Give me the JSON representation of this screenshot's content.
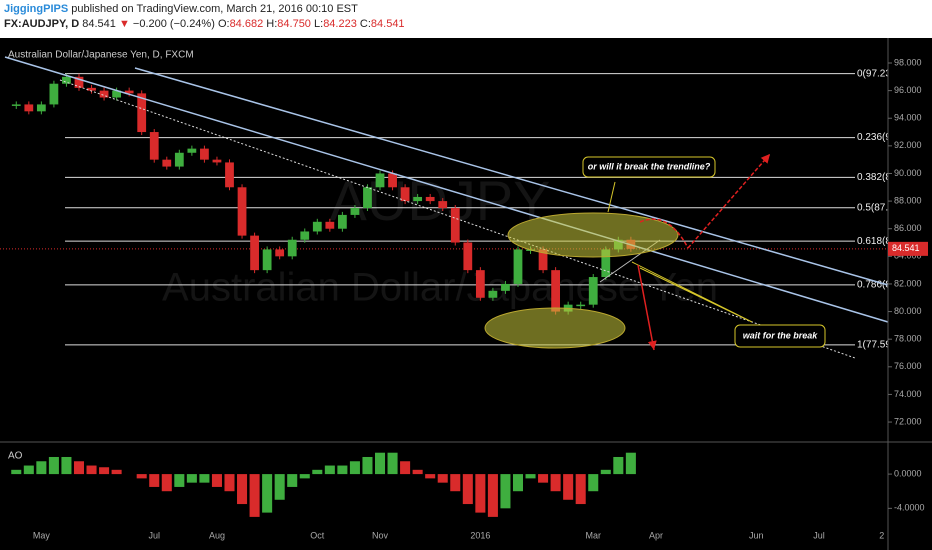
{
  "header": {
    "author": "JiggingPIPS",
    "published": "published on TradingView.com, March 21, 2016 00:10 EST",
    "symbol": "FX:AUDJPY, D",
    "last": "84.541",
    "arrow": "▼",
    "change": "−0.200 (−0.24%)",
    "ohlc": [
      [
        "O:",
        "84.682"
      ],
      [
        "H:",
        "84.750"
      ],
      [
        "L:",
        "84.223"
      ],
      [
        "C:",
        "84.541"
      ]
    ]
  },
  "chart_data": {
    "type": "candlestick",
    "title": "Australian Dollar/Japanese Yen, D, FXCM",
    "watermark": [
      "AUDJPY",
      "Australian Dollar/Japanese Yen"
    ],
    "categories": [
      null,
      null,
      "May",
      null,
      null,
      null,
      null,
      null,
      null,
      null,
      null,
      "Jul",
      null,
      null,
      null,
      null,
      "Aug",
      null,
      null,
      null,
      null,
      null,
      null,
      null,
      "Oct",
      null,
      null,
      null,
      null,
      "Nov",
      null,
      null,
      null,
      null,
      null,
      null,
      null,
      "2016",
      null,
      null,
      null,
      null,
      null,
      null,
      null,
      null,
      "Mar",
      null,
      null,
      null,
      null,
      "Apr",
      null,
      null,
      null,
      null,
      null,
      null,
      null,
      "Jun",
      null,
      null,
      null,
      null,
      "Jul",
      null,
      null,
      null,
      null,
      "2"
    ],
    "values": [
      95,
      94.5,
      95,
      96.5,
      97,
      96.2,
      96,
      95.5,
      96,
      95.8,
      93,
      91,
      90.5,
      91.5,
      91.8,
      91,
      90.8,
      89,
      85.5,
      83,
      84.5,
      84,
      85.2,
      85.8,
      86.5,
      86,
      87,
      87.5,
      89,
      90,
      89,
      88,
      88.3,
      88,
      87.5,
      85,
      83,
      81,
      81.5,
      82,
      84.5,
      84.5,
      83,
      80,
      80.5,
      80.5,
      82.5,
      84.5,
      85.2,
      84.541,
      null,
      null,
      null,
      null,
      null,
      null,
      null,
      null,
      null,
      null,
      null,
      null,
      null,
      null,
      null,
      null,
      null,
      null,
      null,
      null
    ],
    "up_color": "#3fae3f",
    "down_color": "#d92b2b",
    "ylim": [
      70.7,
      98
    ],
    "yticks": [
      {
        "value": 98,
        "label": "98.000"
      },
      {
        "value": 96,
        "label": "96.000"
      },
      {
        "value": 94,
        "label": "94.000"
      },
      {
        "value": 92,
        "label": "92.000"
      },
      {
        "value": 90,
        "label": "90.000"
      },
      {
        "value": 88,
        "label": "88.000"
      },
      {
        "value": 86,
        "label": "86.000"
      },
      {
        "value": 84,
        "label": "84.000"
      },
      {
        "value": 82,
        "label": "82.000"
      },
      {
        "value": 80,
        "label": "80.000"
      },
      {
        "value": 78,
        "label": "78.000"
      },
      {
        "value": 76,
        "label": "76.000"
      },
      {
        "value": 74,
        "label": "74.000"
      },
      {
        "value": 72,
        "label": "72.000"
      }
    ],
    "last_price": {
      "value": 84.541,
      "label": "84.541"
    },
    "fib_levels": [
      {
        "value": 97.23,
        "label": "0(97.23"
      },
      {
        "value": 92.6,
        "label": "0.236(9"
      },
      {
        "value": 89.72,
        "label": "0.382(8"
      },
      {
        "value": 87.52,
        "label": "0.5(87."
      },
      {
        "value": 85.1,
        "label": "0.618(8"
      },
      {
        "value": 81.93,
        "label": "0.786(8"
      },
      {
        "value": 77.59,
        "label": "1(77.59"
      }
    ],
    "annotations": [
      "or will it break the trendline?",
      "wait for the break"
    ],
    "indicator": {
      "label": "AO",
      "values": [
        0.5,
        1,
        1.5,
        2,
        2,
        1.5,
        1,
        0.8,
        0.5,
        0,
        -0.5,
        -1.5,
        -2,
        -1.5,
        -1,
        -1,
        -1.5,
        -2,
        -3.5,
        -5,
        -4.5,
        -3,
        -1.5,
        -0.5,
        0.5,
        1,
        1,
        1.5,
        2,
        2.5,
        2.5,
        1.5,
        0.5,
        -0.5,
        -1,
        -2,
        -3.5,
        -4.5,
        -5,
        -4,
        -2,
        -0.5,
        -1,
        -2,
        -3,
        -3.5,
        -2,
        0.5,
        2,
        2.5,
        null,
        null,
        null,
        null,
        null,
        null,
        null,
        null,
        null,
        null,
        null,
        null,
        null,
        null,
        null,
        null,
        null,
        null,
        null,
        null
      ],
      "ylim": [
        -7.7,
        3.4
      ],
      "yticks": [
        {
          "value": 0,
          "label": "0.0000"
        },
        {
          "value": -4,
          "label": "-4.0000"
        }
      ]
    }
  }
}
